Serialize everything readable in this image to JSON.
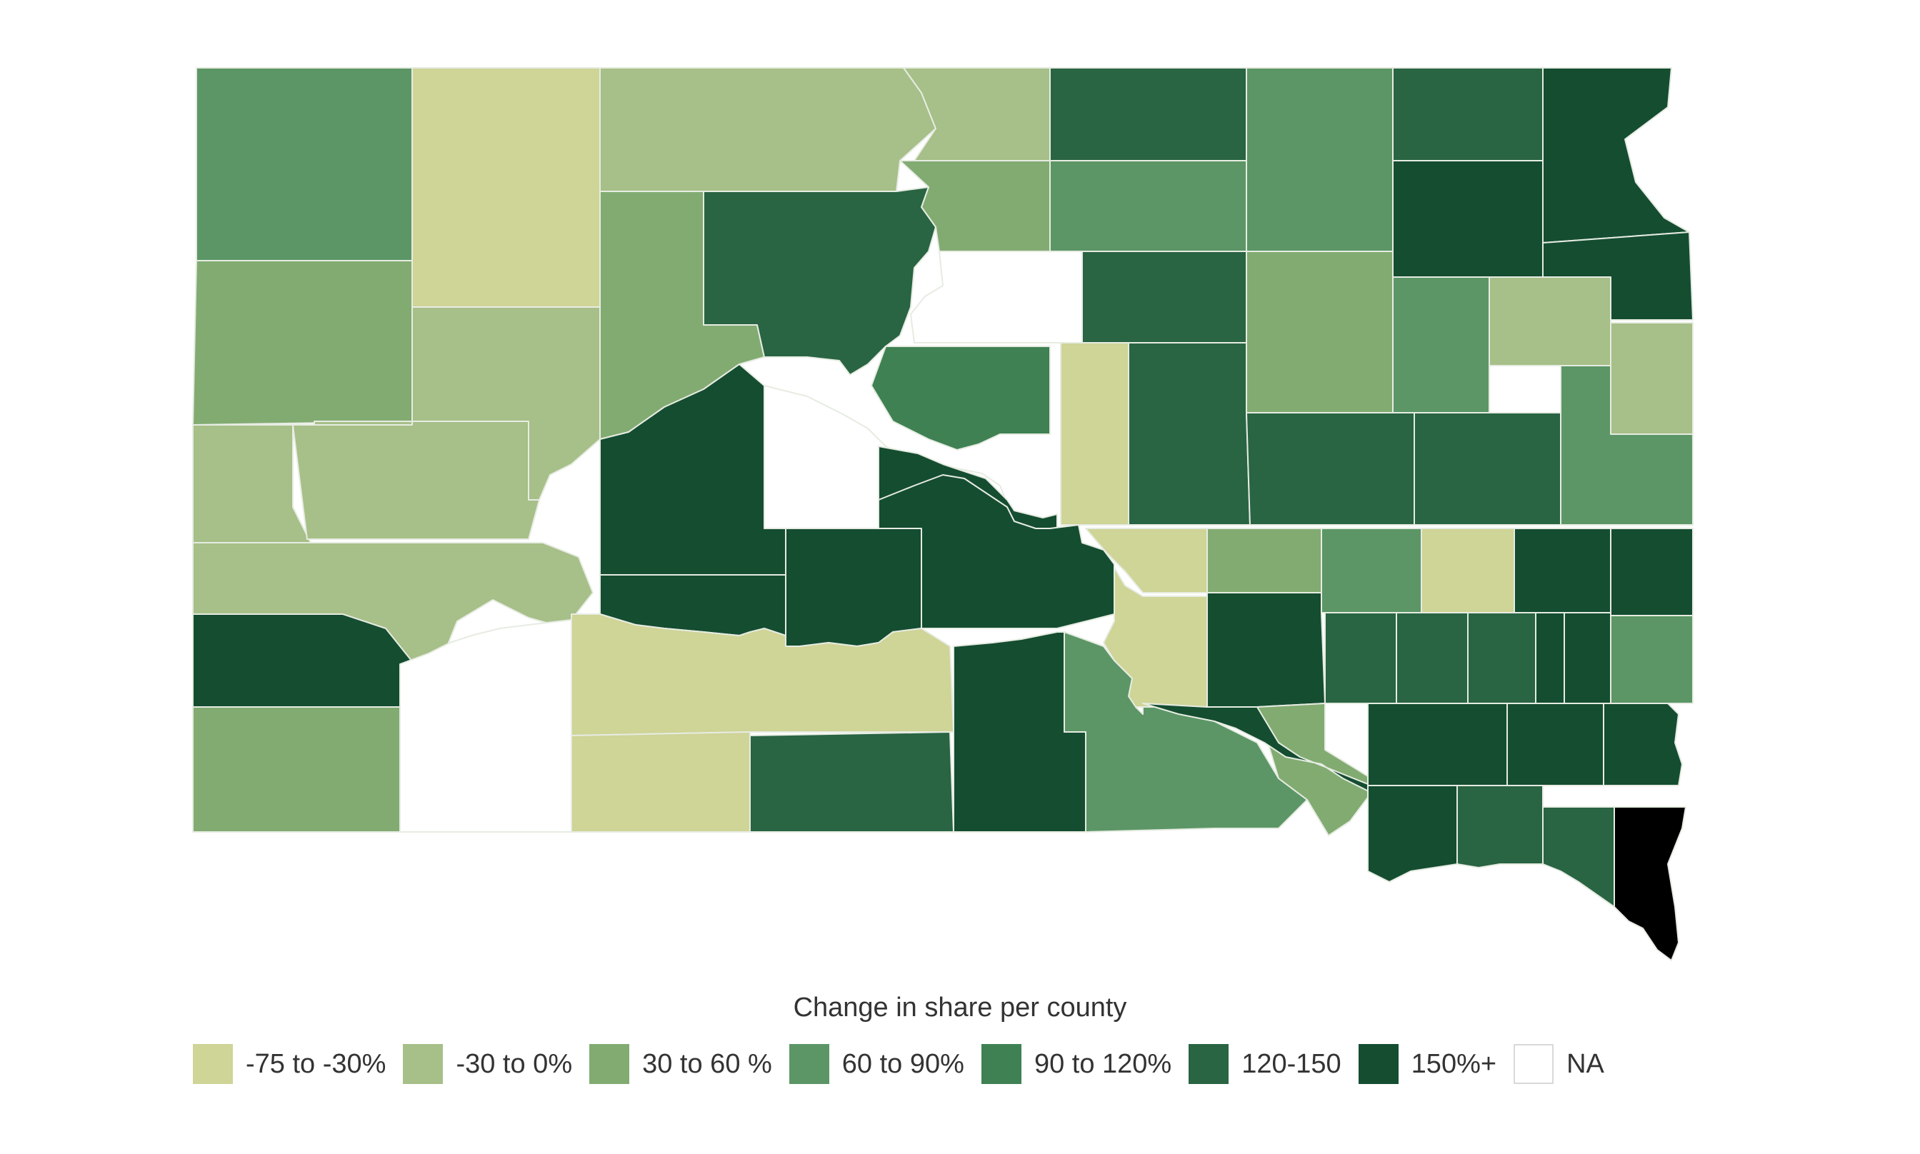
{
  "legend": {
    "title": "Change in share per county",
    "items": [
      {
        "label": "-75 to -30%",
        "color": "#cfd497"
      },
      {
        "label": "-30 to 0%",
        "color": "#a7bf88"
      },
      {
        "label": "30 to 60 %",
        "color": "#82ab72"
      },
      {
        "label": "60 to 90%",
        "color": "#5c9666"
      },
      {
        "label": "90 to 120%",
        "color": "#3f8153"
      },
      {
        "label": "120-150",
        "color": "#296443"
      },
      {
        "label": "150%+",
        "color": "#154d31"
      },
      {
        "label": "NA",
        "color": "#ffffff"
      }
    ]
  },
  "counties": [
    {
      "cls": 3
    },
    {
      "cls": 0
    },
    {
      "cls": 1
    },
    {
      "cls": 1
    },
    {
      "cls": 5
    },
    {
      "cls": 3
    },
    {
      "cls": 5
    },
    {
      "cls": 6
    },
    {
      "cls": 2
    },
    {
      "cls": 3
    },
    {
      "cls": 6
    },
    {
      "cls": 2
    },
    {
      "cls": 5
    },
    {
      "cls": 6
    },
    {
      "cls": 7
    },
    {
      "cls": 5
    },
    {
      "cls": 2
    },
    {
      "cls": 3
    },
    {
      "cls": 2
    },
    {
      "cls": 1
    },
    {
      "cls": 4
    },
    {
      "cls": 0
    },
    {
      "cls": 1
    },
    {
      "cls": 5
    },
    {
      "cls": 5
    },
    {
      "cls": 1
    },
    {
      "cls": 7
    },
    {
      "cls": 6
    },
    {
      "cls": 5
    },
    {
      "cls": 3
    },
    {
      "cls": 1
    },
    {
      "cls": 1
    },
    {
      "cls": 6
    },
    {
      "cls": 6
    },
    {
      "cls": 0
    },
    {
      "cls": 2
    },
    {
      "cls": 1
    },
    {
      "cls": 6
    },
    {
      "cls": 3
    },
    {
      "cls": 6
    },
    {
      "cls": 0
    },
    {
      "cls": 6
    },
    {
      "cls": 6
    },
    {
      "cls": 6
    },
    {
      "cls": 6
    },
    {
      "cls": 0
    },
    {
      "cls": 6
    },
    {
      "cls": 5
    },
    {
      "cls": 5
    },
    {
      "cls": 5
    },
    {
      "cls": 6
    },
    {
      "cls": 6
    },
    {
      "cls": 3
    },
    {
      "cls": 2
    },
    {
      "cls": 7
    },
    {
      "cls": 0
    },
    {
      "cls": 0
    },
    {
      "cls": 5
    },
    {
      "cls": 6
    },
    {
      "cls": 3
    },
    {
      "cls": 2
    },
    {
      "cls": 6
    },
    {
      "cls": 6
    },
    {
      "cls": 6
    },
    {
      "cls": 6
    },
    {
      "cls": 6
    },
    {
      "cls": 5
    },
    {
      "cls": 5
    }
  ]
}
